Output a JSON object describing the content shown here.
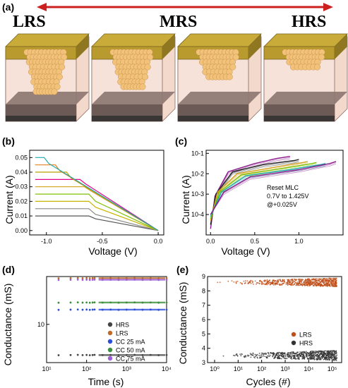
{
  "panel_labels": {
    "a": "(a)",
    "b": "(b)",
    "c": "(c)",
    "d": "(d)",
    "e": "(e)"
  },
  "states": {
    "lrs": "LRS",
    "mrs": "MRS",
    "hrs": "HRS"
  },
  "colors": {
    "arrow": "#cc1f1f",
    "electrode": "#b89a2f",
    "filament": "#f3c27a",
    "box": "#f3d9cc",
    "bottom": "#3a3636"
  },
  "device_fill_levels": [
    0.85,
    0.75,
    0.55,
    0.35
  ],
  "chart_data": [
    {
      "type": "line",
      "panel": "b",
      "xlabel": "Voltage (V)",
      "ylabel": "Current (A)",
      "xlim": [
        -1.15,
        0.05
      ],
      "ylim": [
        -0.003,
        0.055
      ],
      "xticks": [
        "-1.0",
        "-0.5",
        "0.0"
      ],
      "yticks": [
        "0.00",
        "0.01",
        "0.02",
        "0.03",
        "0.04",
        "0.05"
      ],
      "series": [
        {
          "color": "#555555",
          "points": [
            [
              -1.1,
              0.01
            ],
            [
              -0.62,
              0.01
            ],
            [
              -0.56,
              0.008
            ],
            [
              0,
              0
            ]
          ]
        },
        {
          "color": "#888888",
          "points": [
            [
              -1.1,
              0.015
            ],
            [
              -0.62,
              0.015
            ],
            [
              -0.56,
              0.011
            ],
            [
              0,
              0
            ]
          ]
        },
        {
          "color": "#c8b400",
          "points": [
            [
              -1.1,
              0.02
            ],
            [
              -0.62,
              0.02
            ],
            [
              -0.56,
              0.016
            ],
            [
              0,
              0
            ]
          ]
        },
        {
          "color": "#7fbf00",
          "points": [
            [
              -1.1,
              0.025
            ],
            [
              -0.62,
              0.025
            ],
            [
              -0.56,
              0.02
            ],
            [
              0,
              0
            ]
          ]
        },
        {
          "color": "#d4a017",
          "points": [
            [
              -1.1,
              0.03
            ],
            [
              -0.66,
              0.03
            ],
            [
              -0.6,
              0.027
            ],
            [
              0,
              0
            ]
          ]
        },
        {
          "color": "#e0008a",
          "points": [
            [
              -1.1,
              0.035
            ],
            [
              -0.7,
              0.035
            ],
            [
              -0.65,
              0.032
            ],
            [
              0,
              0
            ]
          ]
        },
        {
          "color": "#b8a000",
          "points": [
            [
              -1.1,
              0.04
            ],
            [
              -0.82,
              0.04
            ],
            [
              -0.78,
              0.036
            ],
            [
              0,
              0
            ]
          ]
        },
        {
          "color": "#e6821e",
          "points": [
            [
              -1.1,
              0.045
            ],
            [
              -0.92,
              0.045
            ],
            [
              -0.88,
              0.041
            ],
            [
              0,
              0
            ]
          ]
        },
        {
          "color": "#1fa9a9",
          "points": [
            [
              -1.1,
              0.05
            ],
            [
              -1.02,
              0.05
            ],
            [
              -0.98,
              0.046
            ],
            [
              0,
              0
            ]
          ]
        }
      ]
    },
    {
      "type": "line",
      "panel": "c",
      "xlabel": "Voltage (V)",
      "ylabel": "Current (A)",
      "xlim": [
        -0.05,
        1.5
      ],
      "ylim_log10": [
        -5,
        -0.85
      ],
      "log_y": true,
      "xticks": [
        "0.0",
        "0.5",
        "1.0"
      ],
      "yticks": [
        "10-4",
        "10-3",
        "10-2",
        "10-1"
      ],
      "annotation": [
        "Reset MLC",
        "0.7V to 1.425V",
        "@+0.025V"
      ],
      "series": [
        {
          "color": "#8b1a8b",
          "points": [
            [
              0.0,
              -4.7
            ],
            [
              0.05,
              -3.1
            ],
            [
              0.2,
              -1.9
            ],
            [
              0.5,
              -1.5
            ],
            [
              0.75,
              -1.25
            ],
            [
              0.9,
              -1.15
            ]
          ]
        },
        {
          "color": "#222222",
          "points": [
            [
              0.0,
              -4.5
            ],
            [
              0.06,
              -3.0
            ],
            [
              0.25,
              -1.9
            ],
            [
              0.6,
              -1.55
            ],
            [
              0.95,
              -1.35
            ],
            [
              1.0,
              -1.3
            ]
          ]
        },
        {
          "color": "#d4a017",
          "points": [
            [
              0.0,
              -4.3
            ],
            [
              0.08,
              -2.9
            ],
            [
              0.3,
              -2.0
            ],
            [
              0.7,
              -1.7
            ],
            [
              1.05,
              -1.45
            ],
            [
              1.1,
              -1.4
            ]
          ]
        },
        {
          "color": "#7fbf00",
          "points": [
            [
              0.0,
              -4.2
            ],
            [
              0.1,
              -2.9
            ],
            [
              0.35,
              -2.05
            ],
            [
              0.8,
              -1.75
            ],
            [
              1.15,
              -1.5
            ],
            [
              1.2,
              -1.45
            ]
          ]
        },
        {
          "color": "#1fa9a9",
          "points": [
            [
              0.0,
              -4.1
            ],
            [
              0.12,
              -2.9
            ],
            [
              0.4,
              -2.1
            ],
            [
              0.9,
              -1.8
            ],
            [
              1.25,
              -1.55
            ],
            [
              1.3,
              -1.5
            ]
          ]
        },
        {
          "color": "#8b1a8b",
          "points": [
            [
              0.0,
              -4.0
            ],
            [
              0.15,
              -2.9
            ],
            [
              0.45,
              -2.15
            ],
            [
              1.0,
              -1.8
            ],
            [
              1.35,
              -1.5
            ],
            [
              1.42,
              -1.4
            ]
          ]
        }
      ]
    },
    {
      "type": "scatter",
      "panel": "d",
      "xlabel": "Time (s)",
      "ylabel": "Conductance (mS)",
      "log_x": true,
      "log_y": true,
      "xlim_log10": [
        1,
        4
      ],
      "ylim_log10": [
        0.4,
        1.75
      ],
      "xticks": [
        "10¹",
        "10²",
        "10³",
        "10⁴"
      ],
      "ytick": "10",
      "legend": [
        "HRS",
        "LRS",
        "CC 25 mA",
        "CC 50 mA",
        "CC 75 mA"
      ],
      "legend_position": "bottom-right",
      "series": [
        {
          "name": "HRS",
          "color": "#444444",
          "value": 3.3
        },
        {
          "name": "LRS",
          "color": "#c06a2a",
          "value": 53
        },
        {
          "name": "CC 25 mA",
          "color": "#2b4fd9",
          "value": 17
        },
        {
          "name": "CC 50 mA",
          "color": "#3c8f3c",
          "value": 22
        },
        {
          "name": "CC 75 mA",
          "color": "#9b5fd9",
          "value": 50
        }
      ],
      "time_points_log10": [
        1.3,
        1.6,
        1.78,
        1.9,
        2.0,
        2.08,
        2.15,
        2.2,
        2.4,
        2.6,
        2.8,
        3.0,
        3.2,
        3.4,
        3.6,
        3.8,
        4.0
      ]
    },
    {
      "type": "scatter",
      "panel": "e",
      "xlabel": "Cycles (#)",
      "ylabel": "Conductance (mS)",
      "log_x": true,
      "xlim_log10": [
        -0.3,
        5.4
      ],
      "ylim": [
        3,
        9
      ],
      "xticks": [
        "10⁰",
        "10¹",
        "10²",
        "10³",
        "10⁴",
        "10⁵"
      ],
      "yticks": [
        "3",
        "4",
        "5",
        "6",
        "7",
        "8",
        "9"
      ],
      "legend": [
        "LRS",
        "HRS"
      ],
      "legend_position": "right",
      "series": [
        {
          "name": "LRS",
          "color": "#c0501a",
          "band": [
            8.2,
            8.8
          ],
          "center": 8.6
        },
        {
          "name": "HRS",
          "color": "#333333",
          "band": [
            3.3,
            4.0
          ],
          "center": 3.5
        }
      ]
    }
  ]
}
